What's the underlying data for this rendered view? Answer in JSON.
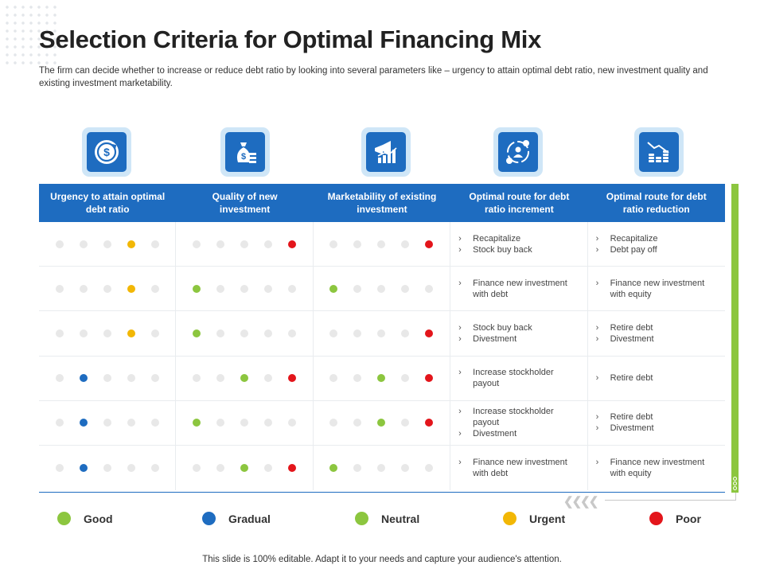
{
  "slide": {
    "title": "Selection Criteria for Optimal Financing Mix",
    "subtitle": "The firm can decide whether to increase or reduce debt ratio by looking into several parameters like – urgency to attain optimal debt ratio, new investment quality and existing investment marketability.",
    "footer": "This slide is 100% editable. Adapt it to your needs and capture your audience's attention."
  },
  "icons": [
    "money-cycle-icon",
    "money-bag-icon",
    "megaphone-growth-icon",
    "finance-cycle-icon",
    "coins-chart-icon"
  ],
  "colors": {
    "header": "#1e6cc0",
    "good": "#8cc63f",
    "gradual": "#1e6cc0",
    "neutral": "#8cc63f",
    "urgent": "#f2b705",
    "poor": "#e3151b",
    "inactive": "#e8e8e8"
  },
  "table": {
    "headers": [
      "Urgency to attain optimal debt ratio",
      "Quality of new investment",
      "Marketability of existing investment",
      "Optimal route for debt ratio increment",
      "Optimal route for debt ratio reduction"
    ],
    "rows": [
      {
        "ratings": [
          [
            null,
            null,
            null,
            "urgent",
            null
          ],
          [
            null,
            null,
            null,
            null,
            "poor"
          ],
          [
            null,
            null,
            null,
            null,
            "poor"
          ]
        ],
        "increment": [
          "Recapitalize",
          "Stock buy back"
        ],
        "reduction": [
          "Recapitalize",
          "Debt pay off"
        ]
      },
      {
        "ratings": [
          [
            null,
            null,
            null,
            "urgent",
            null
          ],
          [
            "good",
            null,
            null,
            null,
            null
          ],
          [
            "good",
            null,
            null,
            null,
            null
          ]
        ],
        "increment": [
          "Finance new investment with debt"
        ],
        "reduction": [
          "Finance new investment with equity"
        ]
      },
      {
        "ratings": [
          [
            null,
            null,
            null,
            "urgent",
            null
          ],
          [
            "good",
            null,
            null,
            null,
            null
          ],
          [
            null,
            null,
            null,
            null,
            "poor"
          ]
        ],
        "increment": [
          "Stock buy back",
          "Divestment"
        ],
        "reduction": [
          "Retire debt",
          "Divestment"
        ]
      },
      {
        "ratings": [
          [
            null,
            "gradual",
            null,
            null,
            null
          ],
          [
            null,
            null,
            "neutral",
            null,
            "poor"
          ],
          [
            null,
            null,
            "neutral",
            null,
            "poor"
          ]
        ],
        "increment": [
          "Increase stockholder payout"
        ],
        "reduction": [
          "Retire debt"
        ]
      },
      {
        "ratings": [
          [
            null,
            "gradual",
            null,
            null,
            null
          ],
          [
            "good",
            null,
            null,
            null,
            null
          ],
          [
            null,
            null,
            "neutral",
            null,
            "poor"
          ]
        ],
        "increment": [
          "Increase stockholder payout",
          "Divestment"
        ],
        "reduction": [
          "Retire debt",
          "Divestment"
        ]
      },
      {
        "ratings": [
          [
            null,
            "gradual",
            null,
            null,
            null
          ],
          [
            null,
            null,
            "neutral",
            null,
            "poor"
          ],
          [
            "good",
            null,
            null,
            null,
            null
          ]
        ],
        "increment": [
          "Finance new investment with debt"
        ],
        "reduction": [
          "Finance new investment with equity"
        ]
      }
    ]
  },
  "legend": [
    {
      "key": "good",
      "label": "Good"
    },
    {
      "key": "gradual",
      "label": "Gradual"
    },
    {
      "key": "neutral",
      "label": "Neutral"
    },
    {
      "key": "urgent",
      "label": "Urgent"
    },
    {
      "key": "poor",
      "label": "Poor"
    }
  ]
}
